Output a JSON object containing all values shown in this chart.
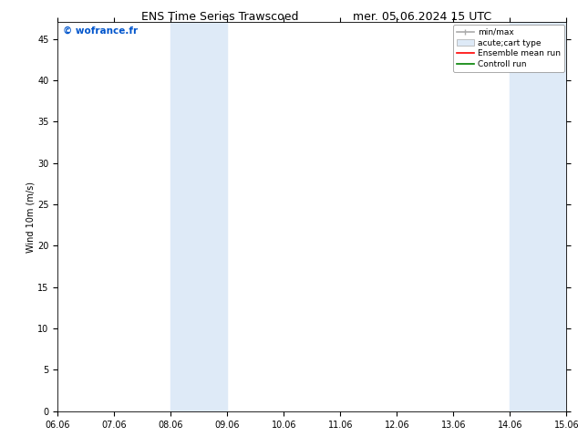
{
  "title_left": "ENS Time Series Trawscoed",
  "title_right": "mer. 05.06.2024 15 UTC",
  "ylabel": "Wind 10m (m/s)",
  "watermark": "© wofrance.fr",
  "watermark_color": "#0055cc",
  "ylim": [
    0,
    47
  ],
  "yticks": [
    0,
    5,
    10,
    15,
    20,
    25,
    30,
    35,
    40,
    45
  ],
  "xtick_labels": [
    "06.06",
    "07.06",
    "08.06",
    "09.06",
    "10.06",
    "11.06",
    "12.06",
    "13.06",
    "14.06",
    "15.06"
  ],
  "background_color": "#ffffff",
  "plot_bg_color": "#ffffff",
  "shaded_bands": [
    {
      "xmin": 2.0,
      "xmax": 3.0,
      "color": "#deeaf7"
    },
    {
      "xmin": 8.0,
      "xmax": 9.0,
      "color": "#deeaf7"
    }
  ],
  "legend_entries": [
    {
      "label": "min/max",
      "color": "#aaaaaa",
      "lw": 1.2
    },
    {
      "label": "acute;cart type",
      "color": "#deeaf7",
      "lw": 5
    },
    {
      "label": "Ensemble mean run",
      "color": "#ff0000",
      "lw": 1.2
    },
    {
      "label": "Controll run",
      "color": "#008000",
      "lw": 1.2
    }
  ],
  "title_fontsize": 9,
  "axis_fontsize": 7,
  "tick_fontsize": 7,
  "legend_fontsize": 6.5
}
